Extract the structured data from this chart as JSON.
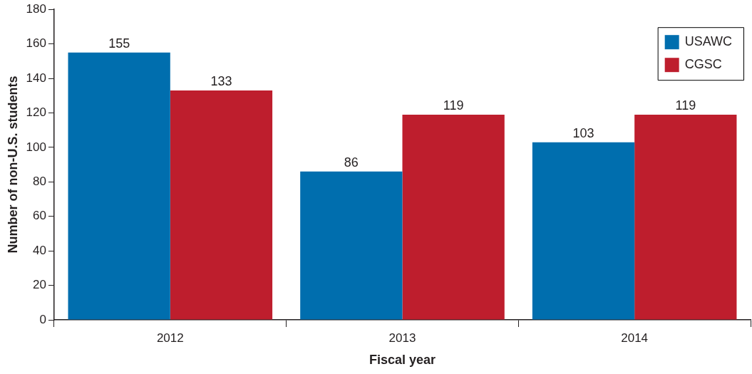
{
  "chart_data": {
    "type": "bar",
    "xlabel": "Fiscal year",
    "ylabel": "Number of non-U.S. students",
    "categories": [
      "2012",
      "2013",
      "2014"
    ],
    "series": [
      {
        "name": "USAWC",
        "color": "#006eae",
        "values": [
          155,
          86,
          103
        ]
      },
      {
        "name": "CGSC",
        "color": "#be1e2d",
        "values": [
          133,
          119,
          119
        ]
      }
    ],
    "ylim": [
      0,
      180
    ],
    "yticks": [
      0,
      20,
      40,
      60,
      80,
      100,
      120,
      140,
      160,
      180
    ],
    "grid": false,
    "legend": "top right",
    "data_labels": true
  }
}
